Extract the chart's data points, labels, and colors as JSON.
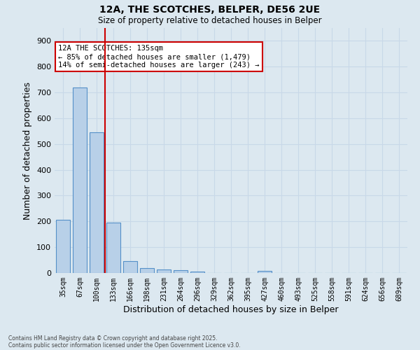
{
  "title1": "12A, THE SCOTCHES, BELPER, DE56 2UE",
  "title2": "Size of property relative to detached houses in Belper",
  "xlabel": "Distribution of detached houses by size in Belper",
  "ylabel": "Number of detached properties",
  "categories": [
    "35sqm",
    "67sqm",
    "100sqm",
    "133sqm",
    "166sqm",
    "198sqm",
    "231sqm",
    "264sqm",
    "296sqm",
    "329sqm",
    "362sqm",
    "395sqm",
    "427sqm",
    "460sqm",
    "493sqm",
    "525sqm",
    "558sqm",
    "591sqm",
    "624sqm",
    "656sqm",
    "689sqm"
  ],
  "values": [
    205,
    720,
    545,
    195,
    47,
    20,
    13,
    10,
    5,
    0,
    0,
    0,
    7,
    0,
    0,
    0,
    0,
    0,
    0,
    0,
    0
  ],
  "bar_color": "#b8d0e8",
  "bar_edge_color": "#5590c8",
  "red_line_color": "#cc0000",
  "annotation_text": "12A THE SCOTCHES: 135sqm\n← 85% of detached houses are smaller (1,479)\n14% of semi-detached houses are larger (243) →",
  "annotation_box_color": "#ffffff",
  "annotation_box_edge": "#cc0000",
  "ylim": [
    0,
    950
  ],
  "yticks": [
    0,
    100,
    200,
    300,
    400,
    500,
    600,
    700,
    800,
    900
  ],
  "grid_color": "#c8d8e8",
  "background_color": "#dce8f0",
  "footer1": "Contains HM Land Registry data © Crown copyright and database right 2025.",
  "footer2": "Contains public sector information licensed under the Open Government Licence v3.0."
}
